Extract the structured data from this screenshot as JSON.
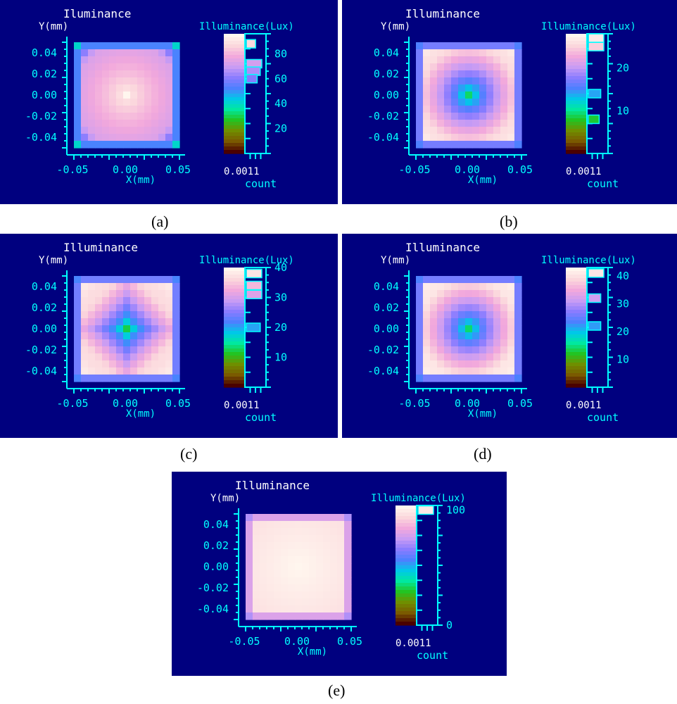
{
  "panels": [
    {
      "id": "a",
      "caption": "(a)",
      "plot_title": "Iluminance",
      "y_axis_label": "Y(mm)",
      "x_axis_label": "X(mm)",
      "x_ticks": [
        "-0.05",
        "0.00",
        "0.05"
      ],
      "y_ticks": [
        "0.04",
        "0.02",
        "0.00",
        "-0.02",
        "-0.04"
      ],
      "colorbar_title": "Illuminance(Lux)",
      "colorbar_ticks": [
        "80",
        "60",
        "40",
        "20"
      ],
      "colorbar_range": [
        0,
        96
      ],
      "count_ticks": "0.0011",
      "count_label": "count",
      "map": {
        "center": 96,
        "edge": 74,
        "corner": 45,
        "border_stripe": 52,
        "profile": "center-peak"
      },
      "histogram": [
        {
          "value": 88,
          "count": 0.6
        },
        {
          "value": 72,
          "count": 1.0
        },
        {
          "value": 66,
          "count": 0.9
        },
        {
          "value": 60,
          "count": 0.7
        }
      ]
    },
    {
      "id": "b",
      "caption": "(b)",
      "plot_title": "Illuminance",
      "y_axis_label": "Y(mm)",
      "x_axis_label": "X(mm)",
      "x_ticks": [
        "-0.05",
        "0.00",
        "0.05"
      ],
      "y_ticks": [
        "0.04",
        "0.02",
        "0.00",
        "-0.02",
        "-0.04"
      ],
      "colorbar_title": "Illuminance(Lux)",
      "colorbar_ticks": [
        "20",
        "10"
      ],
      "colorbar_range": [
        0,
        28
      ],
      "count_ticks": "0.0011",
      "count_label": "count",
      "map": {
        "center": 9,
        "edge": 26,
        "corner": 28,
        "border_stripe": 17,
        "profile": "center-dip"
      },
      "histogram": [
        {
          "value": 27,
          "count": 1.0
        },
        {
          "value": 25,
          "count": 1.0
        },
        {
          "value": 14,
          "count": 0.8
        },
        {
          "value": 8,
          "count": 0.7
        }
      ]
    },
    {
      "id": "c",
      "caption": "(c)",
      "plot_title": "Illuminance",
      "y_axis_label": "Y(mm)",
      "x_axis_label": "X(mm)",
      "x_ticks": [
        "-0.05",
        "0.00",
        "0.05"
      ],
      "y_ticks": [
        "0.04",
        "0.02",
        "0.00",
        "-0.02",
        "-0.04"
      ],
      "colorbar_title": "Illuminance(Lux)",
      "colorbar_ticks": [
        "40",
        "30",
        "20",
        "10"
      ],
      "colorbar_range": [
        0,
        40
      ],
      "count_ticks": "0.0011",
      "count_label": "count",
      "map": {
        "center": 12,
        "edge": 37,
        "corner": 40,
        "border_stripe": 24,
        "profile": "diamond-dip"
      },
      "histogram": [
        {
          "value": 38,
          "count": 1.0
        },
        {
          "value": 34,
          "count": 1.0
        },
        {
          "value": 31,
          "count": 1.0
        },
        {
          "value": 20,
          "count": 0.9
        }
      ]
    },
    {
      "id": "d",
      "caption": "(d)",
      "plot_title": "Illuminance",
      "y_axis_label": "Y(mm)",
      "x_axis_label": "X(mm)",
      "x_ticks": [
        "-0.05",
        "0.00",
        "0.05"
      ],
      "y_ticks": [
        "0.04",
        "0.02",
        "0.00",
        "-0.02",
        "-0.04"
      ],
      "colorbar_title": "Illuminance(Lux)",
      "colorbar_ticks": [
        "40",
        "30",
        "20",
        "10"
      ],
      "colorbar_range": [
        0,
        43
      ],
      "count_ticks": "0.0011",
      "count_label": "count",
      "map": {
        "center": 14,
        "edge": 41,
        "corner": 43,
        "border_stripe": 26,
        "profile": "center-dip"
      },
      "histogram": [
        {
          "value": 41,
          "count": 1.0
        },
        {
          "value": 32,
          "count": 0.8
        },
        {
          "value": 22,
          "count": 0.8
        }
      ]
    },
    {
      "id": "e",
      "caption": "(e)",
      "plot_title": "Illuminance",
      "y_axis_label": "Y(mm)",
      "x_axis_label": "X(mm)",
      "x_ticks": [
        "-0.05",
        "0.00",
        "0.05"
      ],
      "y_ticks": [
        "0.04",
        "0.02",
        "0.00",
        "-0.02",
        "-0.04"
      ],
      "colorbar_title": "Illuminance(Lux)",
      "colorbar_ticks": [
        "100",
        "0"
      ],
      "colorbar_range": [
        0,
        104
      ],
      "count_ticks": "0.0011",
      "count_label": "count",
      "map": {
        "center": 104,
        "edge": 99,
        "corner": 97,
        "border_stripe": 80,
        "profile": "flat"
      },
      "histogram": [
        {
          "value": 100,
          "count": 1.0
        }
      ]
    }
  ],
  "colors": {
    "background": "#00007f",
    "axis": "#00ffff",
    "text": "#00ffff",
    "title_white": "#ffffff",
    "palette": [
      "#4a0000",
      "#7a5a00",
      "#6f8f00",
      "#22c422",
      "#00e8a0",
      "#00c8e8",
      "#4d80ff",
      "#8a7cff",
      "#c89cf4",
      "#f2a8dc",
      "#fbd6dc",
      "#fff6ee"
    ]
  }
}
